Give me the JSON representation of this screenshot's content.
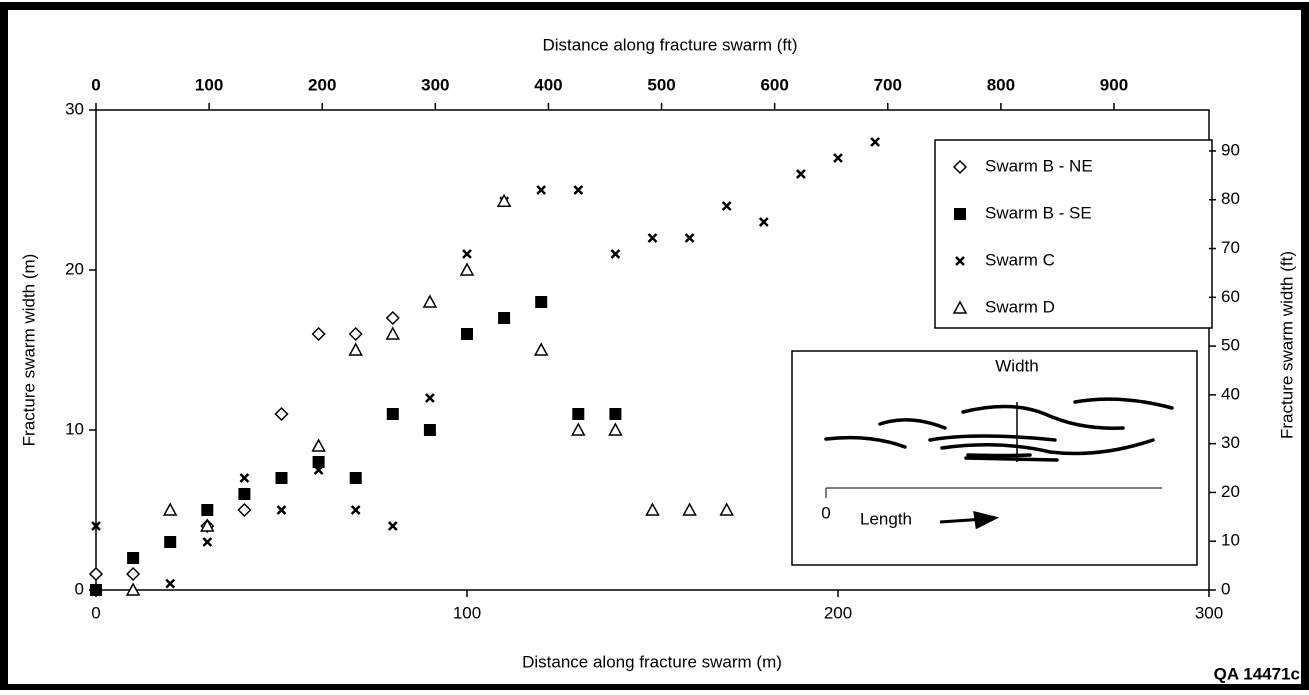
{
  "chart_data": {
    "type": "scatter",
    "xlabel": "Distance along fracture swarm (m)",
    "x2label": "Distance along fracture swarm (ft)",
    "ylabel": "Fracture swarm width (m)",
    "y2label": "Fracture swarm width (ft)",
    "xlim": [
      0,
      300
    ],
    "xticks": [
      0,
      100,
      200,
      300
    ],
    "ylim": [
      0,
      30
    ],
    "yticks": [
      0,
      10,
      20,
      30
    ],
    "x2lim": [
      0,
      984
    ],
    "x2ticks": [
      0,
      100,
      200,
      300,
      400,
      500,
      600,
      700,
      800,
      900
    ],
    "y2lim": [
      0,
      98.4
    ],
    "y2ticks": [
      0,
      10,
      20,
      30,
      40,
      50,
      60,
      70,
      80,
      90
    ],
    "series": [
      {
        "name": "Swarm B - NE",
        "marker": "diamond",
        "color": "#000000",
        "x": [
          0,
          10,
          30,
          40,
          50,
          60,
          70,
          80
        ],
        "values": [
          1,
          1,
          4,
          5,
          11,
          16,
          16,
          17
        ]
      },
      {
        "name": "Swarm B - SE",
        "marker": "square",
        "color": "#000000",
        "x": [
          0,
          10,
          20,
          30,
          40,
          50,
          60,
          70,
          80,
          90,
          100,
          110,
          120,
          130,
          140
        ],
        "values": [
          0,
          2,
          3,
          5,
          6,
          7,
          8,
          7,
          11,
          10,
          16,
          17,
          18,
          11,
          11
        ]
      },
      {
        "name": "Swarm C",
        "marker": "cross",
        "color": "#000000",
        "x": [
          0,
          20,
          30,
          40,
          50,
          60,
          70,
          80,
          90,
          100,
          110,
          120,
          130,
          140,
          150,
          160,
          170,
          180,
          190,
          200,
          210
        ],
        "values": [
          4,
          0.4,
          3,
          7,
          5,
          7.5,
          5,
          4,
          12,
          21,
          24.3,
          25,
          25,
          21,
          22,
          22,
          24,
          23,
          26,
          27,
          28
        ]
      },
      {
        "name": "Swarm D",
        "marker": "triangle",
        "color": "#000000",
        "x": [
          10,
          20,
          30,
          60,
          70,
          80,
          90,
          100,
          110,
          120,
          130,
          140,
          150,
          160,
          170
        ],
        "values": [
          0,
          5,
          4,
          9,
          15,
          16,
          18,
          20,
          24.3,
          15,
          10,
          10,
          5,
          5,
          5
        ]
      }
    ],
    "inset": {
      "width_label": "Width",
      "origin_label": "0",
      "length_label": "Length"
    },
    "figure_id": "QA 14471c"
  }
}
